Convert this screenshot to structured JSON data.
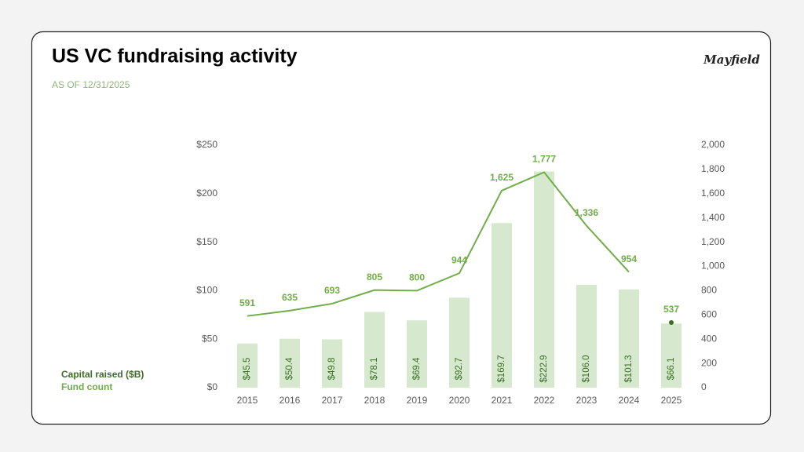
{
  "logo": "Mayfield",
  "chart_data": {
    "type": "bar",
    "title": "US VC fundraising activity",
    "subtitle": "AS OF 12/31/2025",
    "categories": [
      "2015",
      "2016",
      "2017",
      "2018",
      "2019",
      "2020",
      "2021",
      "2022",
      "2023",
      "2024",
      "2025"
    ],
    "series": [
      {
        "name": "Capital raised ($B)",
        "type": "bar",
        "color": "#d6e9cf",
        "label_color": "#3b6e22",
        "values": [
          45.5,
          50.4,
          49.8,
          78.1,
          69.4,
          92.7,
          169.7,
          222.9,
          106.0,
          101.3,
          66.1
        ],
        "value_labels": [
          "$45.5",
          "$50.4",
          "$49.8",
          "$78.1",
          "$69.4",
          "$92.7",
          "$169.7",
          "$222.9",
          "$106.0",
          "$101.3",
          "$66.1"
        ]
      },
      {
        "name": "Fund count",
        "type": "line",
        "axis": "y2",
        "color": "#70ad47",
        "label_color": "#70ad47",
        "values": [
          591,
          635,
          693,
          805,
          800,
          944,
          1625,
          1777,
          1336,
          954,
          537
        ],
        "value_labels": [
          "591",
          "635",
          "693",
          "805",
          "800",
          "944",
          "1,625",
          "1,777",
          "1,336",
          "954",
          "537"
        ]
      }
    ],
    "ylim": [
      0,
      250
    ],
    "yticks": [
      {
        "value": 0,
        "label": "$0"
      },
      {
        "value": 50,
        "label": "$50"
      },
      {
        "value": 100,
        "label": "$100"
      },
      {
        "value": 150,
        "label": "$150"
      },
      {
        "value": 200,
        "label": "$200"
      },
      {
        "value": 250,
        "label": "$250"
      }
    ],
    "y2lim": [
      0,
      2000
    ],
    "y2ticks": [
      0,
      200,
      400,
      600,
      800,
      {
        "value": 1000,
        "label": "1,000"
      },
      {
        "value": 1200,
        "label": "1,200"
      },
      {
        "value": 1400,
        "label": "1,400"
      },
      {
        "value": 1600,
        "label": "1,600"
      },
      {
        "value": 1800,
        "label": "1,800"
      },
      {
        "value": 2000,
        "label": "2,000"
      }
    ],
    "grid": false
  }
}
